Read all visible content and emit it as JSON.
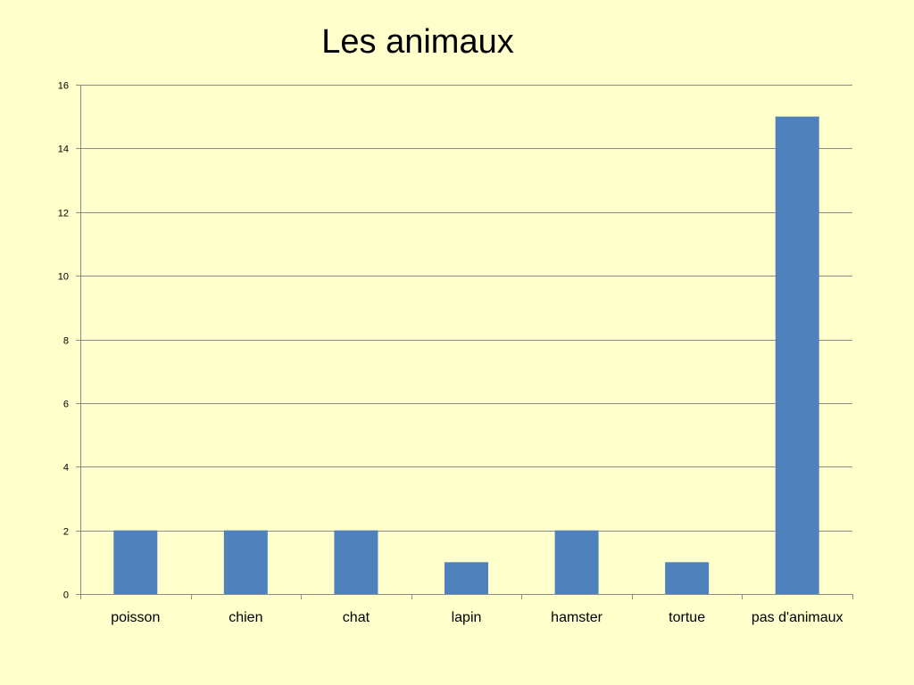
{
  "chart_data": {
    "type": "bar",
    "title": "Les animaux",
    "categories": [
      "poisson",
      "chien",
      "chat",
      "lapin",
      "hamster",
      "tortue",
      "pas d'animaux"
    ],
    "values": [
      2,
      2,
      2,
      1,
      2,
      1,
      15
    ],
    "ylim": [
      0,
      16
    ],
    "yticks": [
      0,
      2,
      4,
      6,
      8,
      10,
      12,
      14,
      16
    ],
    "xlabel": "",
    "ylabel": "",
    "grid": true,
    "legend": "none"
  },
  "colors": {
    "background": "#ffffcc",
    "bar": "#4f81bd",
    "grid": "#8c8c8c",
    "axis": "#8c8c8c"
  }
}
